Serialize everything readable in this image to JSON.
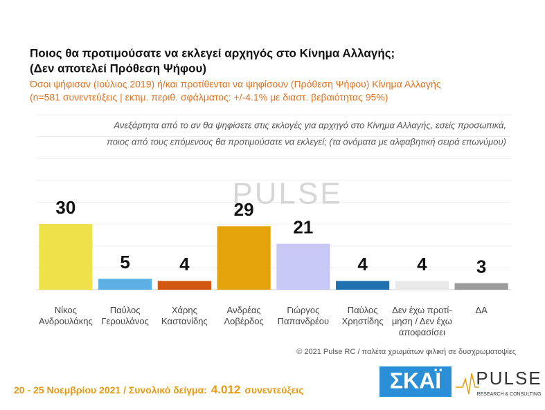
{
  "chart_data": {
    "type": "bar",
    "title": "Ποιος θα προτιμούσατε να εκλεγεί αρχηγός στο Κίνημα Αλλαγής;",
    "title2": "(Δεν αποτελεί Πρόθεση Ψήφου)",
    "subtitle": "Όσοι ψήφισαν (Ιούλιος 2019) ή/και προτίθενται να ψηφίσουν  (Πρόθεση Ψήφου) Κίνημα Αλλαγής",
    "subtitle2": "(n=581 συνεντεύξεις | εκτιμ. περιθ. σφάλματος: +/-4.1% με διαστ. βεβαιότητας 95%)",
    "question": "Ανεξάρτητα από το αν θα ψηφίσετε στις εκλογές για αρχηγό στο Κίνημα Αλλαγής, εσείς προσωπικά,",
    "question2": "ποιος από τους επόμενους θα προτιμούσατε να εκλεγεί; (τα ονόματα με αλφαβητική σειρά επωνύμου)",
    "categories": [
      "Νίκος\nΑνδρουλάκης",
      "Παύλος\nΓερουλάνος",
      "Χάρης\nΚαστανίδης",
      "Ανδρέας\nΛοβέρδος",
      "Γιώργος\nΠαπανδρέου",
      "Παύλος\nΧρηστίδης",
      "Δεν έχω προτί-\nμηση / Δεν έχω\nαποφασίσει",
      "ΔΑ"
    ],
    "values": [
      30,
      5,
      4,
      29,
      21,
      4,
      4,
      3
    ],
    "colors": [
      "#efe14a",
      "#5cb0e6",
      "#d2560f",
      "#e4a30a",
      "#c8c8f7",
      "#1f70b1",
      "#e9e9e9",
      "#9b9b9b"
    ],
    "ylim": [
      0,
      80
    ],
    "gridlines": [
      0,
      10,
      20,
      30,
      40,
      50,
      60,
      70,
      80
    ],
    "watermark": "PULSE",
    "copyright": "© 2021 Pulse RC  /  παλέτα χρωμάτων φιλική σε δυσχρωματοψίες",
    "footer_date": "20 - 25  Νοεμβρίου 2021  /  Συνολικό δείγμα:",
    "footer_sample": "4.012",
    "footer_sample_unit": "συνεντεύξεις",
    "logo_skai": "ΣΚΑΪ",
    "logo_pulse": "PULSE",
    "logo_pulse_sub": "RESEARCH & CONSULTING"
  }
}
